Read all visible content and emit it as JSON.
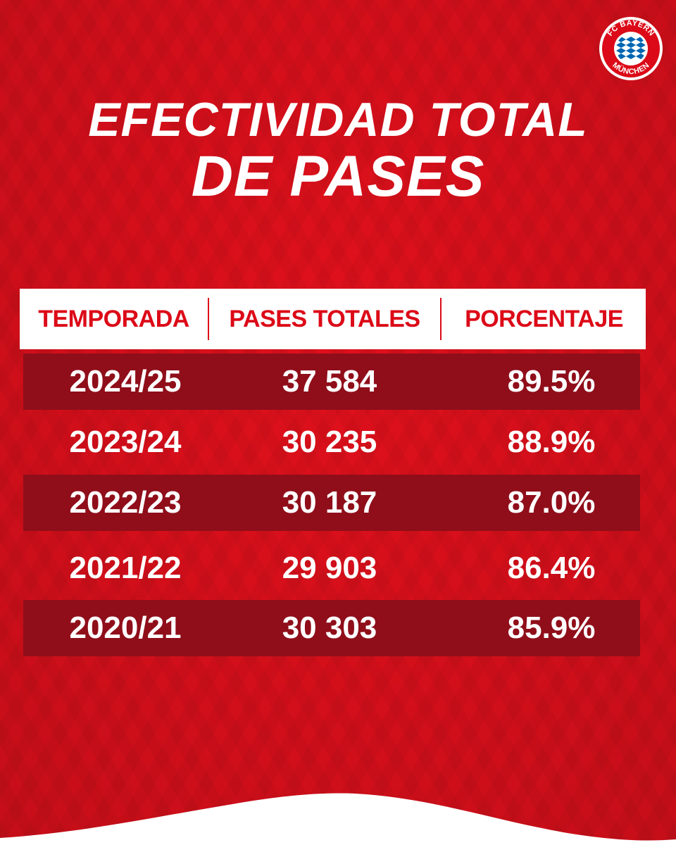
{
  "brand": {
    "logo_top_text": "FC BAYERN",
    "logo_bottom_text": "MÜNCHEN",
    "colors": {
      "red": "#e0101c",
      "dark_red": "#8f0e1a",
      "white": "#ffffff",
      "blue": "#0066b2"
    }
  },
  "title": {
    "line1": "EFECTIVIDAD TOTAL",
    "line2": "DE PASES"
  },
  "table": {
    "headers": [
      "TEMPORADA",
      "PASES TOTALES",
      "PORCENTAJE"
    ],
    "rows": [
      {
        "season": "2024/25",
        "passes": "37 584",
        "percent": "89.5%"
      },
      {
        "season": "2023/24",
        "passes": "30 235",
        "percent": "88.9%"
      },
      {
        "season": "2022/23",
        "passes": "30 187",
        "percent": "87.0%"
      },
      {
        "season": "2021/22",
        "passes": "29 903",
        "percent": "86.4%"
      },
      {
        "season": "2020/21",
        "passes": "30 303",
        "percent": "85.9%"
      }
    ]
  }
}
